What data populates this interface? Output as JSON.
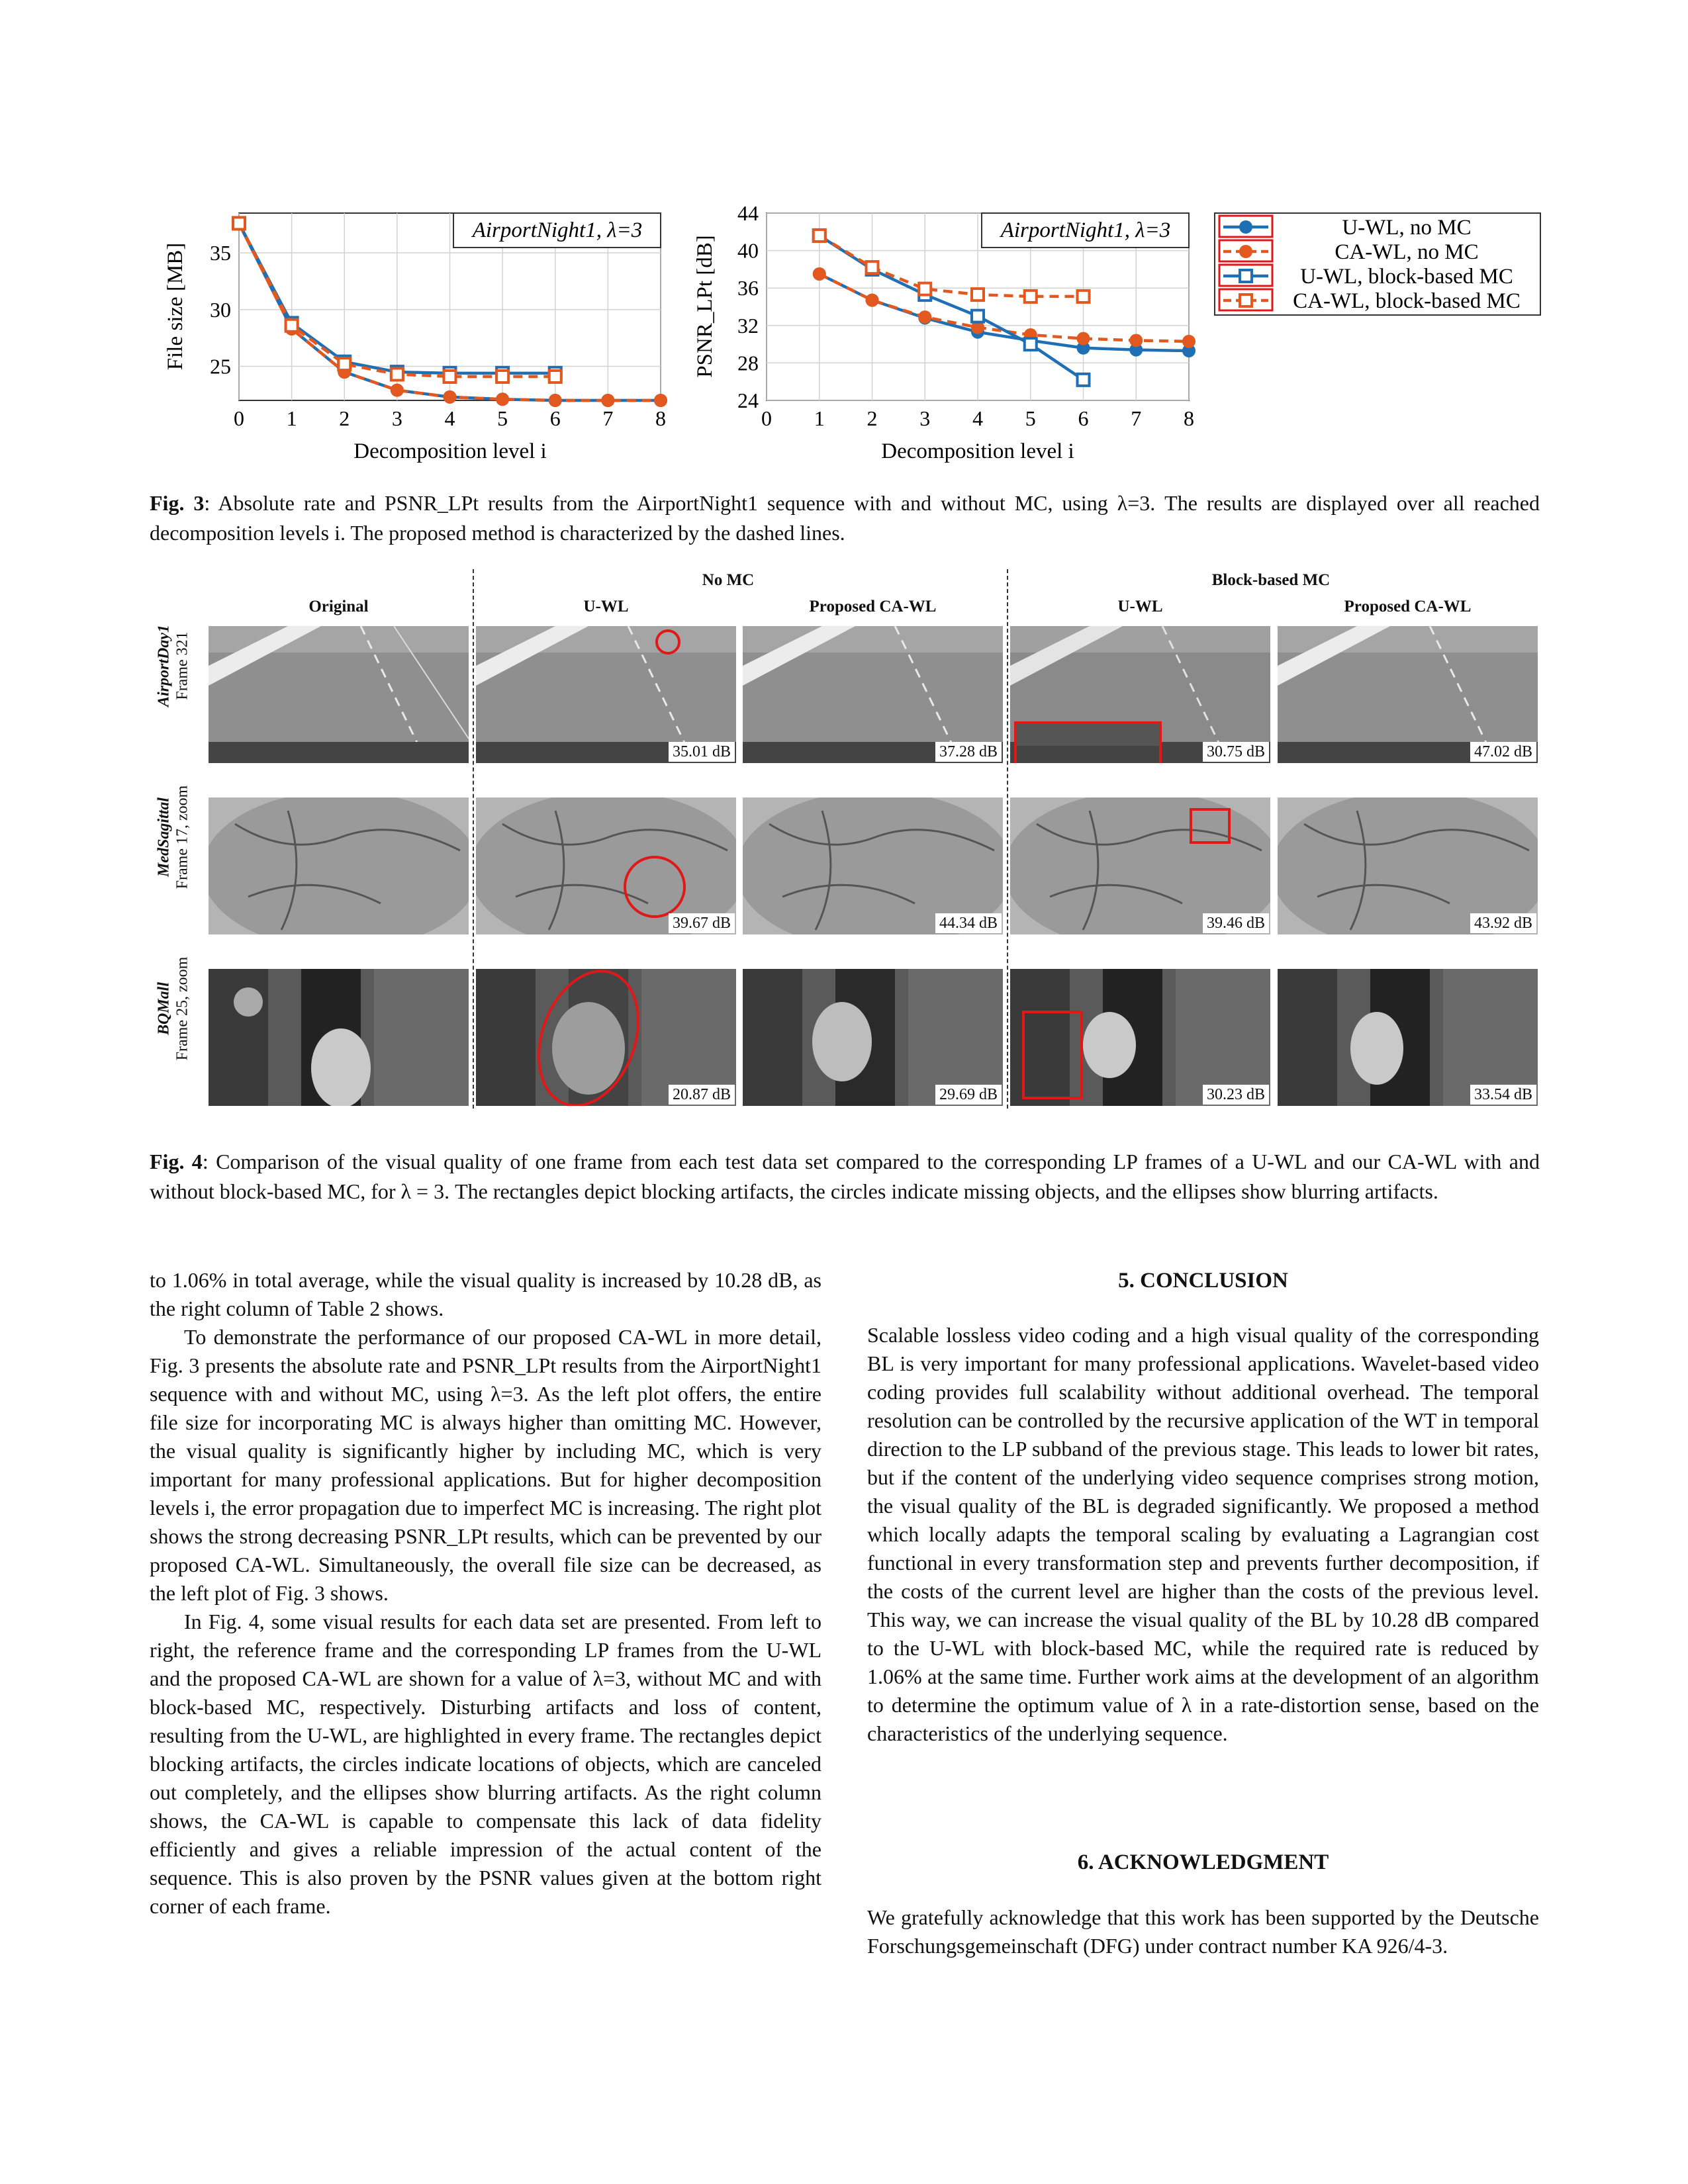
{
  "fig3": {
    "left_chart": {
      "annotation": "AirportNight1, λ=3",
      "ylabel": "File size [MB]",
      "xlabel": "Decomposition level i",
      "xticks": [
        "0",
        "1",
        "2",
        "3",
        "4",
        "5",
        "6",
        "7",
        "8"
      ],
      "yticks": [
        "25",
        "30",
        "35"
      ]
    },
    "right_chart": {
      "annotation": "AirportNight1, λ=3",
      "ylabel": "PSNR_LPt [dB]",
      "xlabel": "Decomposition level i",
      "xticks": [
        "0",
        "1",
        "2",
        "3",
        "4",
        "5",
        "6",
        "7",
        "8"
      ],
      "yticks": [
        "24",
        "28",
        "32",
        "36",
        "40",
        "44"
      ]
    },
    "legend": [
      "U-WL, no MC",
      "CA-WL, no MC",
      "U-WL, block-based MC",
      "CA-WL, block-based MC"
    ],
    "caption_label": "Fig. 3",
    "caption_text": ": Absolute rate and PSNR_LPt results from the AirportNight1 sequence with and without MC, using λ=3. The results are displayed over all reached decomposition levels i. The proposed method is characterized by the dashed lines."
  },
  "chart_data": [
    {
      "type": "line",
      "title": "AirportNight1, λ=3",
      "xlabel": "Decomposition level i",
      "ylabel": "File size [MB]",
      "xlim": [
        0,
        8
      ],
      "ylim": [
        22,
        38.5
      ],
      "grid": true,
      "series": [
        {
          "name": "U-WL, no MC",
          "color": "#1f6fb4",
          "style": "solid",
          "marker": "circle",
          "x": [
            0,
            1,
            2,
            3,
            4,
            5,
            6,
            7,
            8
          ],
          "y": [
            37.6,
            28.3,
            24.5,
            22.9,
            22.3,
            22.1,
            22.0,
            22.0,
            22.0
          ]
        },
        {
          "name": "CA-WL, no MC",
          "color": "#e2581e",
          "style": "dashed",
          "marker": "circle",
          "x": [
            0,
            1,
            2,
            3,
            4,
            5,
            6,
            7,
            8
          ],
          "y": [
            37.6,
            28.3,
            24.5,
            22.9,
            22.3,
            22.1,
            22.0,
            22.0,
            22.0
          ]
        },
        {
          "name": "U-WL, block-based MC",
          "color": "#1f6fb4",
          "style": "solid",
          "marker": "square",
          "x": [
            0,
            1,
            2,
            3,
            4,
            5,
            6
          ],
          "y": [
            37.6,
            28.8,
            25.4,
            24.5,
            24.4,
            24.4,
            24.4
          ]
        },
        {
          "name": "CA-WL, block-based MC",
          "color": "#e2581e",
          "style": "dashed",
          "marker": "square",
          "x": [
            0,
            1,
            2,
            3,
            4,
            5,
            6
          ],
          "y": [
            37.6,
            28.6,
            25.2,
            24.3,
            24.1,
            24.1,
            24.1
          ]
        }
      ]
    },
    {
      "type": "line",
      "title": "AirportNight1, λ=3",
      "xlabel": "Decomposition level i",
      "ylabel": "PSNR_LPt [dB]",
      "xlim": [
        0,
        8
      ],
      "ylim": [
        24,
        44
      ],
      "grid": true,
      "series": [
        {
          "name": "U-WL, no MC",
          "color": "#1f6fb4",
          "style": "solid",
          "marker": "circle",
          "x": [
            1,
            2,
            3,
            4,
            5,
            6,
            7,
            8
          ],
          "y": [
            37.5,
            34.7,
            32.8,
            31.3,
            30.4,
            29.6,
            29.4,
            29.3
          ]
        },
        {
          "name": "CA-WL, no MC",
          "color": "#e2581e",
          "style": "dashed",
          "marker": "circle",
          "x": [
            1,
            2,
            3,
            4,
            5,
            6,
            7,
            8
          ],
          "y": [
            37.5,
            34.7,
            32.9,
            31.8,
            31.0,
            30.6,
            30.4,
            30.3
          ]
        },
        {
          "name": "U-WL, block-based MC",
          "color": "#1f6fb4",
          "style": "solid",
          "marker": "square",
          "x": [
            1,
            2,
            3,
            4,
            5,
            6
          ],
          "y": [
            41.6,
            38.0,
            35.3,
            33.0,
            30.0,
            26.2
          ]
        },
        {
          "name": "CA-WL, block-based MC",
          "color": "#e2581e",
          "style": "dashed",
          "marker": "square",
          "x": [
            1,
            2,
            3,
            4,
            5,
            6
          ],
          "y": [
            41.6,
            38.2,
            35.9,
            35.3,
            35.1,
            35.1
          ]
        }
      ]
    }
  ],
  "fig4": {
    "group_no_mc": "No MC",
    "group_block_mc": "Block-based MC",
    "col_headers": [
      "Original",
      "U-WL",
      "Proposed CA-WL",
      "U-WL",
      "Proposed CA-WL"
    ],
    "rows": [
      {
        "name": "AirportDay1",
        "frame": "Frame 321",
        "psnr": [
          "",
          "35.01 dB",
          "37.28 dB",
          "30.75 dB",
          "47.02 dB"
        ]
      },
      {
        "name": "MedSagittal",
        "frame": "Frame 17, zoom",
        "psnr": [
          "",
          "39.67 dB",
          "44.34 dB",
          "39.46 dB",
          "43.92 dB"
        ]
      },
      {
        "name": "BQMall",
        "frame": "Frame 25, zoom",
        "psnr": [
          "",
          "20.87 dB",
          "29.69 dB",
          "30.23 dB",
          "33.54 dB"
        ]
      }
    ],
    "caption_label": "Fig. 4",
    "caption_text": ": Comparison of the visual quality of one frame from each test data set compared to the corresponding LP frames of a U-WL and our CA-WL with and without block-based MC, for λ = 3. The rectangles depict blocking artifacts, the circles indicate missing objects, and the ellipses show blurring artifacts."
  },
  "left_column": {
    "p1": "to 1.06% in total average, while the visual quality is increased by 10.28 dB, as the right column of Table 2 shows.",
    "p2": "To demonstrate the performance of our proposed CA-WL in more detail, Fig. 3 presents the absolute rate and PSNR_LPt results from the AirportNight1 sequence with and without MC, using λ=3. As the left plot offers, the entire file size for incorporating MC is always higher than omitting MC. However, the visual quality is significantly higher by including MC, which is very important for many professional applications. But for higher decomposition levels i, the error propagation due to imperfect MC is increasing. The right plot shows the strong decreasing PSNR_LPt results, which can be prevented by our proposed CA-WL. Simultaneously, the overall file size can be decreased, as the left plot of Fig. 3 shows.",
    "p3": "In Fig. 4, some visual results for each data set are presented. From left to right, the reference frame and the corresponding LP frames from the U-WL and the proposed CA-WL are shown for a value of λ=3, without MC and with block-based MC, respectively. Disturbing artifacts and loss of content, resulting from the U-WL, are highlighted in every frame. The rectangles depict blocking artifacts, the circles indicate locations of objects, which are canceled out completely, and the ellipses show blurring artifacts. As the right column shows, the CA-WL is capable to compensate this lack of data fidelity efficiently and gives a reliable impression of the actual content of the sequence. This is also proven by the PSNR values given at the bottom right corner of each frame."
  },
  "right_column": {
    "conclusion_heading": "5. CONCLUSION",
    "conclusion_text": "Scalable lossless video coding and a high visual quality of the corresponding BL is very important for many professional applications. Wavelet-based video coding provides full scalability without additional overhead. The temporal resolution can be controlled by the recursive application of the WT in temporal direction to the LP subband of the previous stage. This leads to lower bit rates, but if the content of the underlying video sequence comprises strong motion, the visual quality of the BL is degraded significantly. We proposed a method which locally adapts the temporal scaling by evaluating a Lagrangian cost functional in every transformation step and prevents further decomposition, if the costs of the current level are higher than the costs of the previous level. This way, we can increase the visual quality of the BL by 10.28 dB compared to the U-WL with block-based MC, while the required rate is reduced by 1.06% at the same time. Further work aims at the development of an algorithm to determine the optimum value of λ in a rate-distortion sense, based on the characteristics of the underlying sequence.",
    "ack_heading": "6. ACKNOWLEDGMENT",
    "ack_text": "We gratefully acknowledge that this work has been supported by the Deutsche Forschungsgemeinschaft (DFG) under contract number KA 926/4-3."
  }
}
